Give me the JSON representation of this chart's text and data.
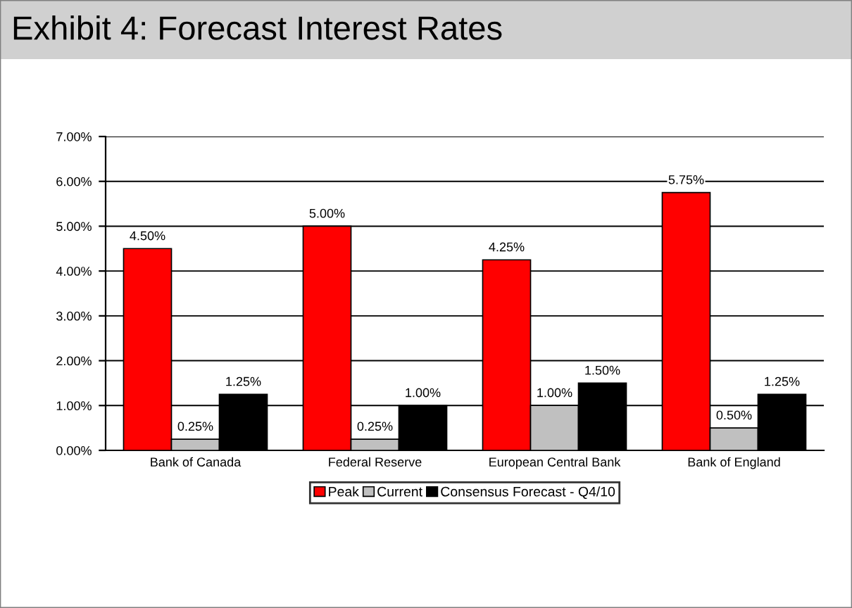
{
  "chart_data": {
    "type": "bar",
    "title": "Exhibit 4: Forecast Interest Rates",
    "categories": [
      "Bank of Canada",
      "Federal Reserve",
      "European Central Bank",
      "Bank of England"
    ],
    "series": [
      {
        "name": "Peak",
        "color": "#ff0000",
        "values": [
          4.5,
          5.0,
          4.25,
          5.75
        ],
        "value_labels": [
          "4.50%",
          "5.00%",
          "4.25%",
          "5.75%"
        ]
      },
      {
        "name": "Current",
        "color": "#c0c0c0",
        "values": [
          0.25,
          0.25,
          1.0,
          0.5
        ],
        "value_labels": [
          "0.25%",
          "0.25%",
          "1.00%",
          "0.50%"
        ]
      },
      {
        "name": "Consensus Forecast - Q4/10",
        "color": "#000000",
        "values": [
          1.25,
          1.0,
          1.5,
          1.25
        ],
        "value_labels": [
          "1.25%",
          "1.00%",
          "1.50%",
          "1.25%"
        ]
      }
    ],
    "ylim": [
      0,
      7
    ],
    "yticks": [
      {
        "value": 0,
        "label": "0.00%"
      },
      {
        "value": 1,
        "label": "1.00%"
      },
      {
        "value": 2,
        "label": "2.00%"
      },
      {
        "value": 3,
        "label": "3.00%"
      },
      {
        "value": 4,
        "label": "4.00%"
      },
      {
        "value": 5,
        "label": "5.00%"
      },
      {
        "value": 6,
        "label": "6.00%"
      },
      {
        "value": 7,
        "label": "7.00%"
      }
    ],
    "grid": "y",
    "legend": "bottom"
  }
}
